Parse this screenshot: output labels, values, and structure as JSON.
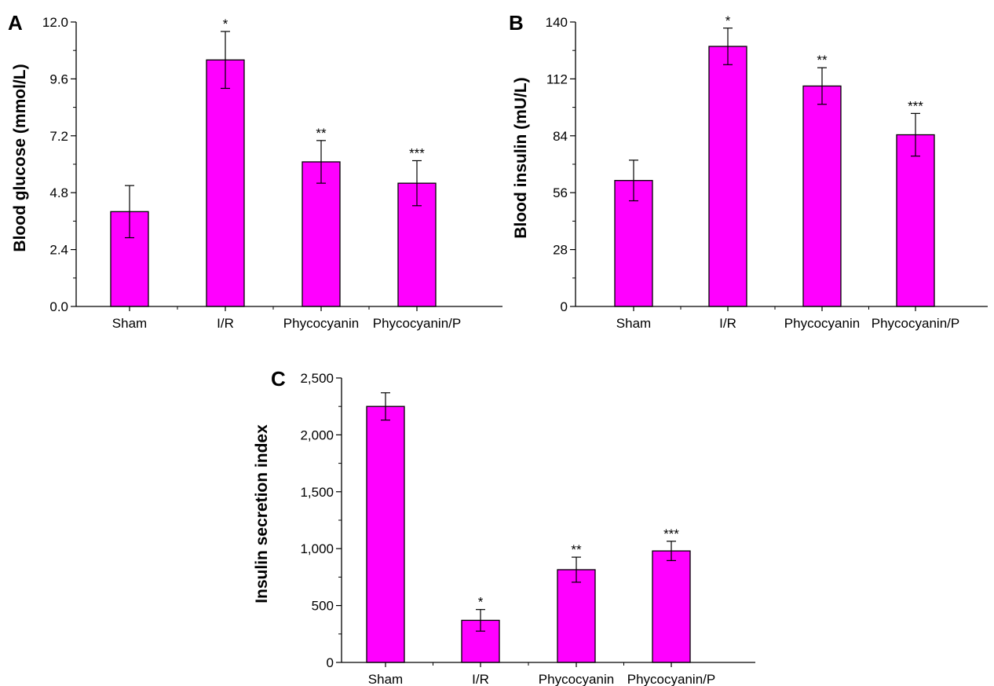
{
  "colors": {
    "bar_fill": "#ff00ff",
    "bar_stroke": "#000000",
    "axis": "#000000"
  },
  "chart_data": [
    {
      "panel": "A",
      "type": "bar",
      "categories": [
        "Sham",
        "I/R",
        "Phycocyanin",
        "Phycocyanin/P"
      ],
      "values": [
        4.0,
        10.4,
        6.1,
        5.2
      ],
      "errors": [
        1.1,
        1.2,
        0.9,
        0.95
      ],
      "significance": [
        "",
        "*",
        "**",
        "***"
      ],
      "ylabel": "Blood glucose (mmol/L)",
      "ylim": [
        0,
        12
      ],
      "yticks": [
        0,
        2.4,
        4.8,
        7.2,
        9.6,
        12
      ],
      "ytick_labels": [
        "0.0",
        "2.4",
        "4.8",
        "7.2",
        "9.6",
        "12.0"
      ],
      "grid": false
    },
    {
      "panel": "B",
      "type": "bar",
      "categories": [
        "Sham",
        "I/R",
        "Phycocyanin",
        "Phycocyanin/P"
      ],
      "values": [
        62,
        128,
        108.5,
        84.5
      ],
      "errors": [
        10,
        9,
        9,
        10.5
      ],
      "significance": [
        "",
        "*",
        "**",
        "***"
      ],
      "ylabel": "Blood insulin (mU/L)",
      "ylim": [
        0,
        140
      ],
      "yticks": [
        0,
        28,
        56,
        84,
        112,
        140
      ],
      "ytick_labels": [
        "0",
        "28",
        "56",
        "84",
        "112",
        "140"
      ],
      "grid": false
    },
    {
      "panel": "C",
      "type": "bar",
      "categories": [
        "Sham",
        "I/R",
        "Phycocyanin",
        "Phycocyanin/P"
      ],
      "values": [
        2250,
        370,
        815,
        980
      ],
      "errors": [
        120,
        95,
        110,
        85
      ],
      "significance": [
        "",
        "*",
        "**",
        "***"
      ],
      "ylabel": "Insulin secretion index",
      "ylim": [
        0,
        2500
      ],
      "yticks": [
        0,
        500,
        1000,
        1500,
        2000,
        2500
      ],
      "ytick_labels": [
        "0",
        "500",
        "1,000",
        "1,500",
        "2,000",
        "2,500"
      ],
      "grid": false
    }
  ]
}
